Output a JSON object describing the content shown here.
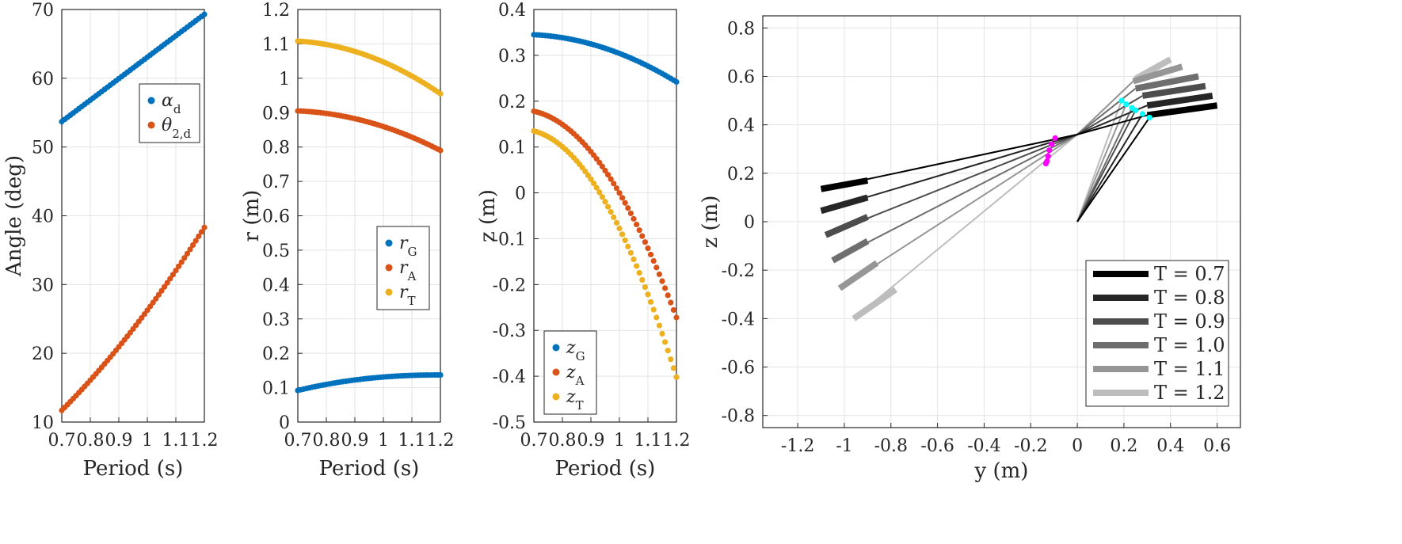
{
  "chart_data": [
    {
      "type": "scatter",
      "id": "angles",
      "xlabel": "Period (s)",
      "ylabel": "Angle (deg)",
      "xlim": [
        0.7,
        1.2
      ],
      "ylim": [
        10,
        70
      ],
      "xticks": [
        "0.7",
        "0.8",
        "0.9",
        "1",
        "1.1",
        "1.2"
      ],
      "yticks": [
        "10",
        "20",
        "30",
        "40",
        "50",
        "60",
        "70"
      ],
      "grid": true,
      "legend": "upper-right",
      "series": [
        {
          "name": "α",
          "sub": "d",
          "color": "#0072BD",
          "start": 53.7,
          "end": 69.3,
          "shape": "linear",
          "curv": 0.0
        },
        {
          "name": "θ",
          "sub": "2,d",
          "color": "#D95319",
          "start": 11.7,
          "end": 38.3,
          "shape": "convex",
          "curv": 0.22
        }
      ]
    },
    {
      "type": "scatter",
      "id": "radii",
      "xlabel": "Period (s)",
      "ylabel": "r (m)",
      "xlim": [
        0.7,
        1.2
      ],
      "ylim": [
        0,
        1.2
      ],
      "xticks": [
        "0.7",
        "0.8",
        "0.9",
        "1",
        "1.1",
        "1.2"
      ],
      "yticks": [
        "0",
        "0.1",
        "0.2",
        "0.3",
        "0.4",
        "0.5",
        "0.6",
        "0.7",
        "0.8",
        "0.9",
        "1",
        "1.1",
        "1.2"
      ],
      "grid": true,
      "legend": "middle-right",
      "series": [
        {
          "name": "r",
          "sub": "G",
          "color": "#0072BD",
          "start": 0.092,
          "end": 0.137,
          "shape": "concave-up-plateau",
          "curv": 0.0
        },
        {
          "name": "r",
          "sub": "A",
          "color": "#D95319",
          "start": 0.905,
          "end": 0.79,
          "shape": "cap",
          "curv": 0.0
        },
        {
          "name": "r",
          "sub": "T",
          "color": "#EDB120",
          "start": 1.108,
          "end": 0.955,
          "shape": "cap",
          "curv": 0.0
        }
      ]
    },
    {
      "type": "scatter",
      "id": "heights",
      "xlabel": "Period (s)",
      "ylabel": "z (m)",
      "xlim": [
        0.7,
        1.2
      ],
      "ylim": [
        -0.5,
        0.4
      ],
      "xticks": [
        "0.7",
        "0.8",
        "0.9",
        "1",
        "1.1",
        "1.2"
      ],
      "yticks": [
        "-0.5",
        "-0.4",
        "-0.3",
        "-0.2",
        "-0.1",
        "0",
        "0.1",
        "0.2",
        "0.3",
        "0.4"
      ],
      "grid": true,
      "legend": "lower-left",
      "series": [
        {
          "name": "z",
          "sub": "G",
          "color": "#0072BD",
          "start": 0.345,
          "end": 0.242,
          "shape": "cap",
          "curv": 0.0
        },
        {
          "name": "z",
          "sub": "A",
          "color": "#D95319",
          "start": 0.178,
          "end": -0.272,
          "shape": "cap",
          "curv": 0.0
        },
        {
          "name": "z",
          "sub": "T",
          "color": "#EDB120",
          "start": 0.135,
          "end": -0.402,
          "shape": "cap",
          "curv": 0.0
        }
      ]
    },
    {
      "type": "line",
      "id": "configurations",
      "xlabel": "y (m)",
      "ylabel": "z (m)",
      "xlim": [
        -1.35,
        0.7
      ],
      "ylim": [
        -0.85,
        0.85
      ],
      "xticks": [
        "-1.2",
        "-1",
        "-0.8",
        "-0.6",
        "-0.4",
        "-0.2",
        "0",
        "0.2",
        "0.4",
        "0.6"
      ],
      "yticks": [
        "-0.8",
        "-0.6",
        "-0.4",
        "-0.2",
        "0",
        "0.2",
        "0.4",
        "0.6",
        "0.8"
      ],
      "grid": true,
      "legend": "lower-right",
      "origin": [
        0,
        0
      ],
      "pivot": [
        0,
        0.36
      ],
      "marker_colors": {
        "pivot_points": "#FF00FF",
        "upper_points": "#00FFFF"
      },
      "series": [
        {
          "label": "T = 0.7",
          "color": "#000000",
          "left_end": [
            -1.1,
            0.135
          ],
          "left_join": [
            -0.9,
            0.17
          ],
          "right_join": [
            0.3,
            0.44
          ],
          "right_end": [
            0.6,
            0.48
          ],
          "pivot_pt": [
            -0.095,
            0.345
          ],
          "upper_pt": [
            0.31,
            0.43
          ]
        },
        {
          "label": "T = 0.8",
          "color": "#262626",
          "left_end": [
            -1.1,
            0.045
          ],
          "left_join": [
            -0.9,
            0.1
          ],
          "right_join": [
            0.3,
            0.48
          ],
          "right_end": [
            0.58,
            0.52
          ],
          "pivot_pt": [
            -0.11,
            0.32
          ],
          "upper_pt": [
            0.28,
            0.445
          ]
        },
        {
          "label": "T = 0.9",
          "color": "#4D4D4D",
          "left_end": [
            -1.08,
            -0.055
          ],
          "left_join": [
            -0.9,
            0.02
          ],
          "right_join": [
            0.28,
            0.52
          ],
          "right_end": [
            0.55,
            0.56
          ],
          "pivot_pt": [
            -0.12,
            0.295
          ],
          "upper_pt": [
            0.25,
            0.46
          ]
        },
        {
          "label": "T = 1.0",
          "color": "#6E6E6E",
          "left_end": [
            -1.05,
            -0.16
          ],
          "left_join": [
            -0.9,
            -0.08
          ],
          "right_join": [
            0.25,
            0.55
          ],
          "right_end": [
            0.52,
            0.6
          ],
          "pivot_pt": [
            -0.125,
            0.27
          ],
          "upper_pt": [
            0.235,
            0.47
          ]
        },
        {
          "label": "T = 1.1",
          "color": "#969696",
          "left_end": [
            -1.02,
            -0.275
          ],
          "left_join": [
            -0.86,
            -0.17
          ],
          "right_join": [
            0.24,
            0.58
          ],
          "right_end": [
            0.45,
            0.64
          ],
          "pivot_pt": [
            -0.13,
            0.25
          ],
          "upper_pt": [
            0.21,
            0.485
          ]
        },
        {
          "label": "T = 1.2",
          "color": "#BDBDBD",
          "left_end": [
            -0.96,
            -0.4
          ],
          "left_join": [
            -0.78,
            -0.28
          ],
          "right_join": [
            0.25,
            0.59
          ],
          "right_end": [
            0.4,
            0.67
          ],
          "pivot_pt": [
            -0.135,
            0.24
          ],
          "upper_pt": [
            0.19,
            0.5
          ]
        }
      ]
    }
  ]
}
